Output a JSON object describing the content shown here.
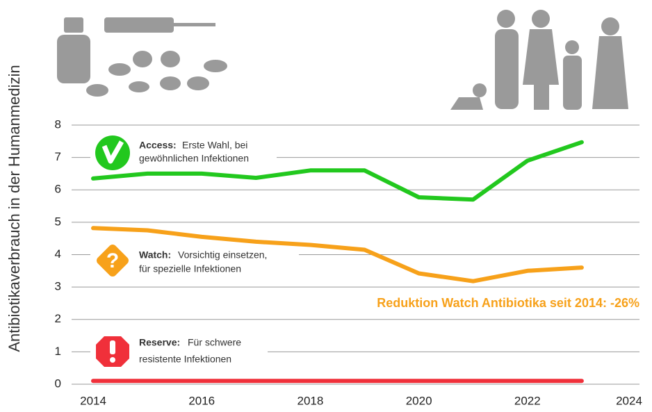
{
  "chart_data": {
    "type": "line",
    "y_label": "Antibiotikaverbrauch in der Humanmedizin",
    "x": [
      2014,
      2015,
      2016,
      2017,
      2018,
      2019,
      2020,
      2021,
      2022,
      2023
    ],
    "xlim": [
      2013.5,
      2024
    ],
    "xticks": [
      2014,
      2016,
      2018,
      2020,
      2022,
      2024
    ],
    "ylim": [
      0,
      8
    ],
    "yticks": [
      0,
      1,
      2,
      3,
      4,
      5,
      6,
      7,
      8
    ],
    "grid": true,
    "series": [
      {
        "name": "Access:",
        "description": [
          "Erste Wahl, bei",
          "gewöhnlichen Infektionen"
        ],
        "color": "#22c81e",
        "values": [
          6.35,
          6.5,
          6.5,
          6.37,
          6.6,
          6.6,
          5.77,
          5.7,
          6.9,
          7.47
        ]
      },
      {
        "name": "Watch:",
        "description": [
          "Vorsichtig einsetzen,",
          "für spezielle Infektionen"
        ],
        "color": "#f7a11a",
        "values": [
          4.82,
          4.75,
          4.55,
          4.4,
          4.3,
          4.15,
          3.42,
          3.18,
          3.5,
          3.6
        ]
      },
      {
        "name": "Reserve:",
        "description": [
          "Für schwere",
          "resistente Infektionen"
        ],
        "color": "#f0303a",
        "values": [
          0.1,
          0.1,
          0.1,
          0.1,
          0.1,
          0.1,
          0.1,
          0.1,
          0.1,
          0.1
        ]
      }
    ],
    "annotation": "Reduktion Watch Antibiotika seit 2014: -26%"
  }
}
